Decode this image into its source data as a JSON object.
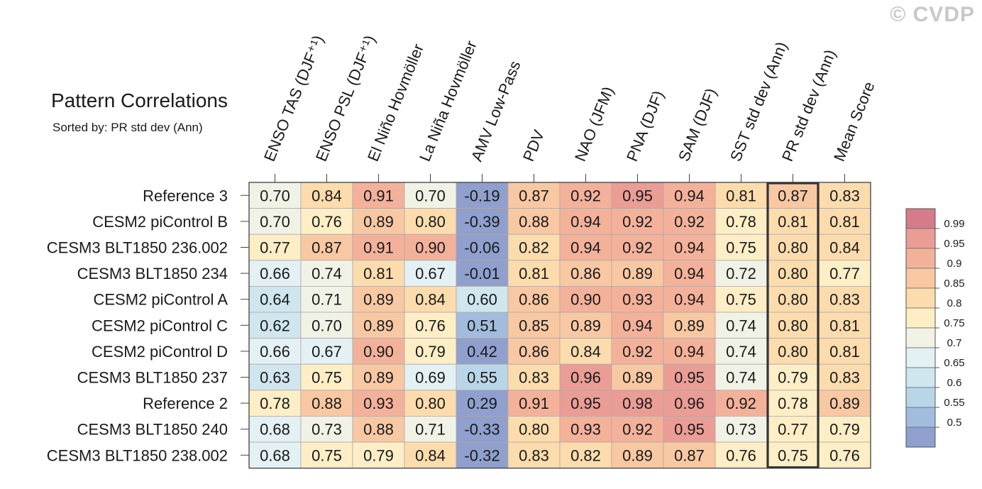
{
  "watermark": "© CVDP",
  "chart_data": {
    "type": "heatmap",
    "title": "Pattern Correlations",
    "subtitle": "Sorted by: PR std dev (Ann)",
    "columns": [
      "ENSO TAS (DJF⁺¹)",
      "ENSO PSL (DJF⁺¹)",
      "El Niño Hovmöller",
      "La Niña Hovmöller",
      "AMV Low-Pass",
      "PDV",
      "NAO (JFM)",
      "PNA (DJF)",
      "SAM (DJF)",
      "SST std dev (Ann)",
      "PR std dev (Ann)",
      "Mean Score"
    ],
    "highlighted_column": "PR std dev (Ann)",
    "rows": [
      {
        "name": "Reference 3",
        "values": [
          "0.70",
          "0.84",
          "0.91",
          "0.70",
          "-0.19",
          "0.87",
          "0.92",
          "0.95",
          "0.94",
          "0.81",
          "0.87",
          "0.83"
        ]
      },
      {
        "name": "CESM2 piControl B",
        "values": [
          "0.70",
          "0.76",
          "0.89",
          "0.80",
          "-0.39",
          "0.88",
          "0.94",
          "0.92",
          "0.92",
          "0.78",
          "0.81",
          "0.81"
        ]
      },
      {
        "name": "CESM3 BLT1850 236.002",
        "values": [
          "0.77",
          "0.87",
          "0.91",
          "0.90",
          "-0.06",
          "0.82",
          "0.94",
          "0.92",
          "0.94",
          "0.75",
          "0.80",
          "0.84"
        ]
      },
      {
        "name": "CESM3 BLT1850 234",
        "values": [
          "0.66",
          "0.74",
          "0.81",
          "0.67",
          "-0.01",
          "0.81",
          "0.86",
          "0.89",
          "0.94",
          "0.72",
          "0.80",
          "0.77"
        ]
      },
      {
        "name": "CESM2 piControl A",
        "values": [
          "0.64",
          "0.71",
          "0.89",
          "0.84",
          "0.60",
          "0.86",
          "0.90",
          "0.93",
          "0.94",
          "0.75",
          "0.80",
          "0.83"
        ]
      },
      {
        "name": "CESM2 piControl C",
        "values": [
          "0.62",
          "0.70",
          "0.89",
          "0.76",
          "0.51",
          "0.85",
          "0.89",
          "0.94",
          "0.89",
          "0.74",
          "0.80",
          "0.81"
        ]
      },
      {
        "name": "CESM2 piControl D",
        "values": [
          "0.66",
          "0.67",
          "0.90",
          "0.79",
          "0.42",
          "0.86",
          "0.84",
          "0.92",
          "0.94",
          "0.74",
          "0.80",
          "0.81"
        ]
      },
      {
        "name": "CESM3 BLT1850 237",
        "values": [
          "0.63",
          "0.75",
          "0.89",
          "0.69",
          "0.55",
          "0.83",
          "0.96",
          "0.89",
          "0.95",
          "0.74",
          "0.79",
          "0.83"
        ]
      },
      {
        "name": "Reference 2",
        "values": [
          "0.78",
          "0.88",
          "0.93",
          "0.80",
          "0.29",
          "0.91",
          "0.95",
          "0.98",
          "0.96",
          "0.92",
          "0.78",
          "0.89"
        ]
      },
      {
        "name": "CESM3 BLT1850 240",
        "values": [
          "0.68",
          "0.73",
          "0.88",
          "0.71",
          "-0.33",
          "0.80",
          "0.93",
          "0.92",
          "0.95",
          "0.73",
          "0.77",
          "0.79"
        ]
      },
      {
        "name": "CESM3 BLT1850 238.002",
        "values": [
          "0.68",
          "0.75",
          "0.79",
          "0.84",
          "-0.32",
          "0.83",
          "0.82",
          "0.89",
          "0.87",
          "0.76",
          "0.75",
          "0.76"
        ]
      }
    ],
    "colorbar": {
      "levels": [
        "0.99",
        "0.95",
        "0.9",
        "0.85",
        "0.8",
        "0.75",
        "0.7",
        "0.65",
        "0.6",
        "0.55",
        "0.5"
      ],
      "colors": [
        "#d57b8a",
        "#ea9d95",
        "#f4b19a",
        "#f8c8a2",
        "#fcdcac",
        "#fdeec5",
        "#f1f2e6",
        "#e3f0f4",
        "#cfe6ef",
        "#b9d6e9",
        "#a1bcdd",
        "#8f9fce"
      ]
    }
  }
}
